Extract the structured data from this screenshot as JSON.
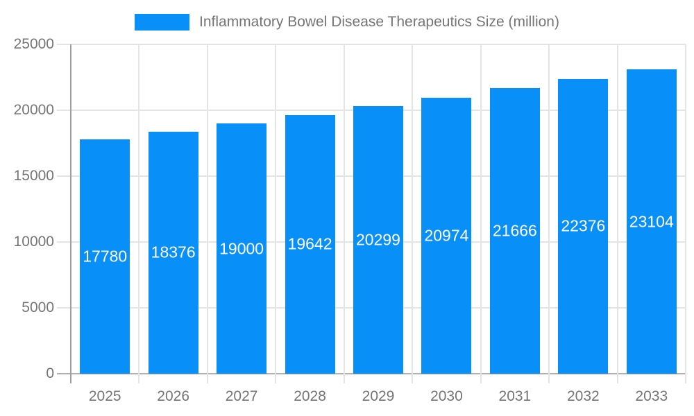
{
  "legend": {
    "label": "Inflammatory Bowel Disease Therapeutics Size (million)"
  },
  "chart_data": {
    "type": "bar",
    "title": "Inflammatory Bowel Disease Therapeutics Size (million)",
    "series_name": "Inflammatory Bowel Disease Therapeutics Size (million)",
    "categories": [
      "2025",
      "2026",
      "2027",
      "2028",
      "2029",
      "2030",
      "2031",
      "2032",
      "2033"
    ],
    "values": [
      17780,
      18376,
      19000,
      19642,
      20299,
      20974,
      21666,
      22376,
      23104
    ],
    "value_labels": [
      "17780",
      "18376",
      "19000",
      "19642",
      "20299",
      "20974",
      "21666",
      "22376",
      "23104"
    ],
    "xlabel": "",
    "ylabel": "",
    "ylim": [
      0,
      25000
    ],
    "yticks": [
      0,
      5000,
      10000,
      15000,
      20000,
      25000
    ],
    "ytick_labels": [
      "0",
      "5000",
      "10000",
      "15000",
      "20000",
      "25000"
    ],
    "grid": true,
    "legend_position": "top",
    "colors": {
      "bar": "#0990f8",
      "value_label": "#ffffff",
      "axis_text": "#757575",
      "legend_text": "#757575",
      "gridline": "#e4e4e4",
      "x_axis_line": "#b0b0b0",
      "y_axis_line": "#9e9e9e",
      "background": "#ffffff"
    }
  }
}
